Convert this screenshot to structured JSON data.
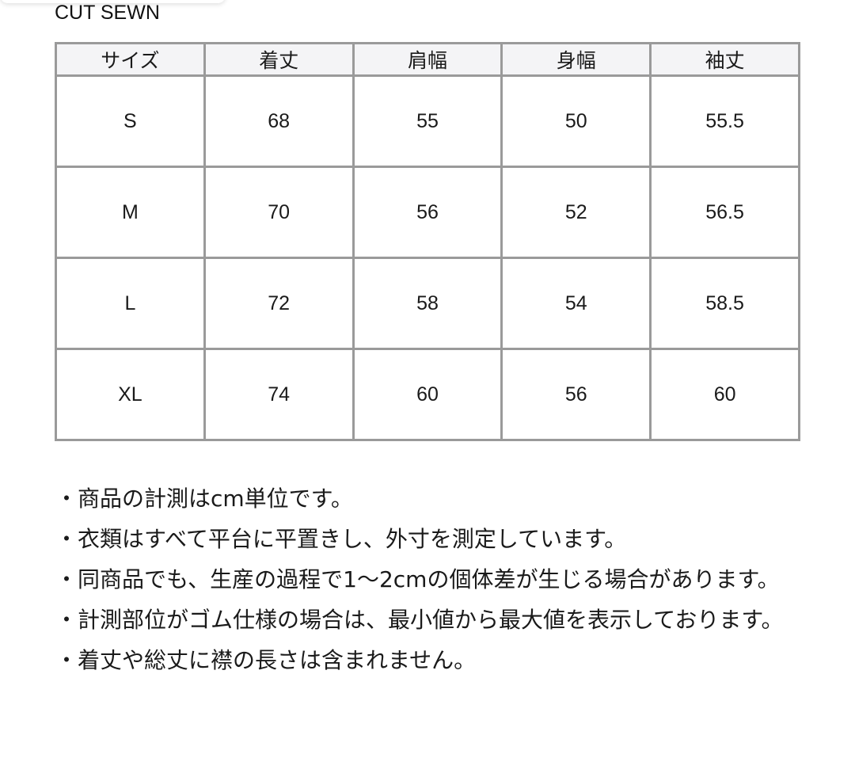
{
  "title": "CUT SEWN",
  "table": {
    "headers": [
      "サイズ",
      "着丈",
      "肩幅",
      "身幅",
      "袖丈"
    ],
    "rows": [
      [
        "S",
        "68",
        "55",
        "50",
        "55.5"
      ],
      [
        "M",
        "70",
        "56",
        "52",
        "56.5"
      ],
      [
        "L",
        "72",
        "58",
        "54",
        "58.5"
      ],
      [
        "XL",
        "74",
        "60",
        "56",
        "60"
      ]
    ]
  },
  "notes": [
    "・商品の計測はcm単位です。",
    "・衣類はすべて平台に平置きし、外寸を測定しています。",
    "・同商品でも、生産の過程で1〜2cmの個体差が生じる場合があります。",
    "・計測部位がゴム仕様の場合は、最小値から最大値を表示しております。",
    "・着丈や総丈に襟の長さは含まれません。"
  ]
}
